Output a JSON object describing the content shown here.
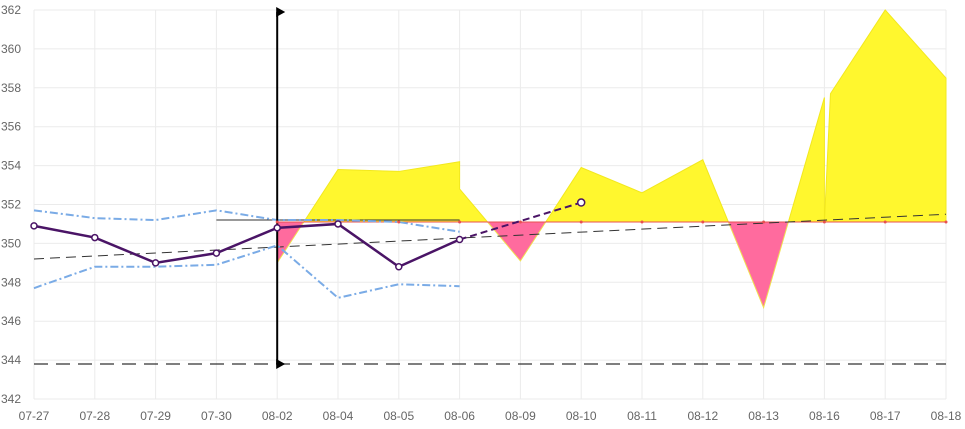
{
  "chart_data": {
    "type": "line",
    "title": "",
    "xlabel": "",
    "ylabel": "",
    "categories": [
      "07-27",
      "07-28",
      "07-29",
      "07-30",
      "08-02",
      "08-04",
      "08-05",
      "08-06",
      "08-09",
      "08-10",
      "08-11",
      "08-12",
      "08-13",
      "08-16",
      "08-17",
      "08-18"
    ],
    "ylim": [
      342,
      362
    ],
    "yticks": [
      342,
      344,
      346,
      348,
      350,
      352,
      354,
      356,
      358,
      360,
      362
    ],
    "grid": true,
    "legend": "none",
    "colors": {
      "main": "#4a1466",
      "band": "#7aabe6",
      "trend": "#333333",
      "above_fill": "#fff72e",
      "below_fill": "#ff6b9e",
      "baseline": "#e85050",
      "marker_line": "#000000"
    },
    "series": [
      {
        "role": "main",
        "values": [
          350.9,
          350.3,
          349.0,
          349.5,
          350.8,
          351.0,
          348.8,
          350.2,
          null,
          null,
          null,
          null,
          null,
          null,
          null,
          null
        ]
      },
      {
        "role": "main-forecast",
        "values": [
          null,
          null,
          null,
          null,
          null,
          null,
          null,
          350.2,
          null,
          352.1,
          null,
          null,
          null,
          null,
          null,
          null
        ]
      },
      {
        "role": "band-upper",
        "values": [
          351.7,
          351.3,
          351.2,
          351.7,
          351.2,
          351.2,
          351.1,
          350.6,
          null,
          null,
          null,
          null,
          null,
          null,
          null,
          null
        ]
      },
      {
        "role": "band-lower",
        "values": [
          347.7,
          348.8,
          348.8,
          348.9,
          349.9,
          347.2,
          347.9,
          347.8,
          null,
          null,
          null,
          null,
          null,
          null,
          null,
          null
        ]
      },
      {
        "role": "area",
        "values": [
          null,
          null,
          null,
          null,
          349.0,
          353.8,
          353.7,
          354.2,
          349.1,
          353.9,
          352.6,
          354.3,
          346.7,
          357.5,
          362.0,
          358.5
        ]
      }
    ],
    "area_extra_points": [
      {
        "x": 7,
        "y": 352.8
      },
      {
        "x": 13,
        "y": 351.1
      },
      {
        "x": 13.1,
        "y": 357.7
      }
    ],
    "baseline": 351.1,
    "short_line": {
      "y": 351.2,
      "x_from": 3.0,
      "x_to": 7.0
    },
    "trend_line": {
      "from": {
        "x": 0,
        "y": 349.2
      },
      "to": {
        "x": 15,
        "y": 351.5
      }
    },
    "reference_line": {
      "y": 343.8
    },
    "vertical_marker": {
      "x": 4,
      "y_from": 343.8,
      "y_to": 361.9
    }
  }
}
